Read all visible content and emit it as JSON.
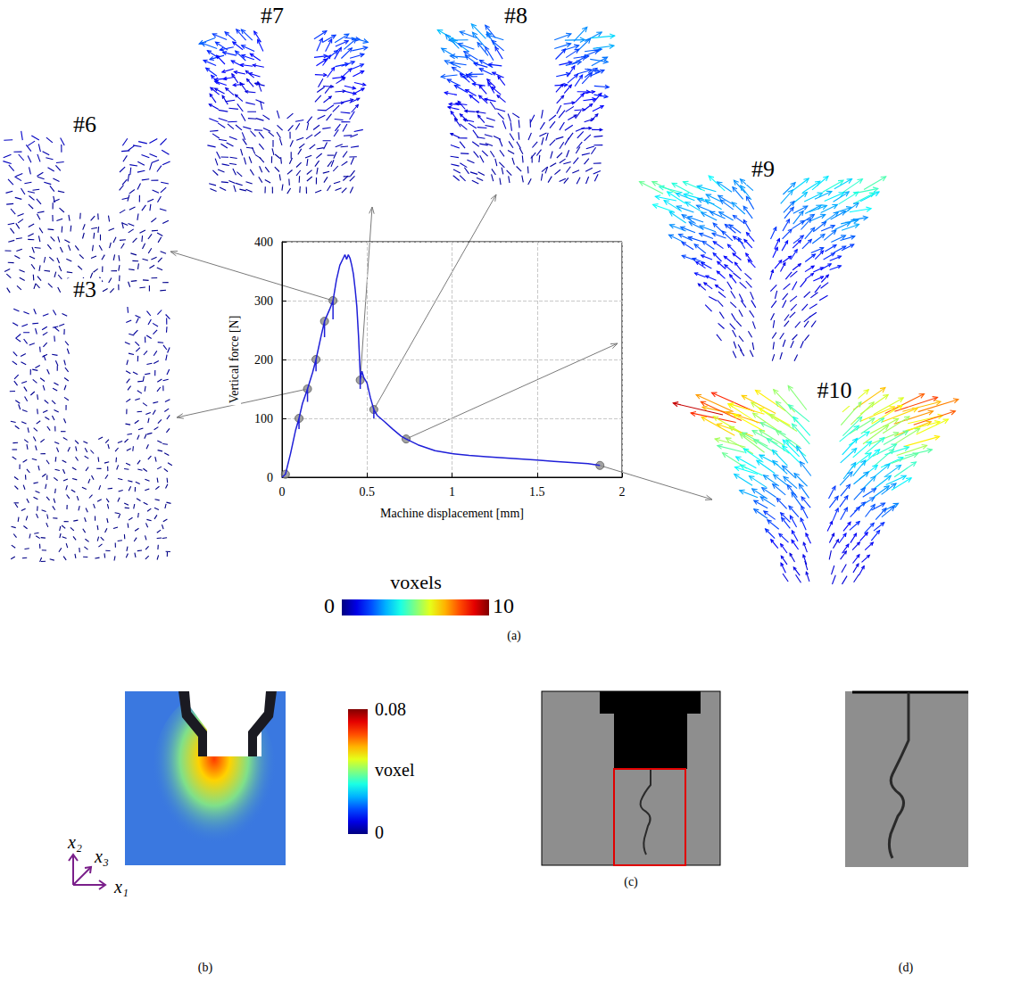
{
  "chart_data": {
    "type": "line",
    "x_label": "Machine displacement [mm]",
    "y_label": "Vertical force [N]",
    "x": [
      0,
      0.02,
      0.05,
      0.08,
      0.1,
      0.1,
      0.1,
      0.12,
      0.15,
      0.15,
      0.15,
      0.18,
      0.2,
      0.2,
      0.2,
      0.23,
      0.25,
      0.25,
      0.25,
      0.28,
      0.3,
      0.3,
      0.3,
      0.32,
      0.34,
      0.36,
      0.37,
      0.38,
      0.39,
      0.4,
      0.41,
      0.42,
      0.43,
      0.44,
      0.45,
      0.46,
      0.46,
      0.46,
      0.47,
      0.48,
      0.49,
      0.5,
      0.52,
      0.54,
      0.54,
      0.54,
      0.56,
      0.6,
      0.65,
      0.7,
      0.73,
      0.8,
      0.9,
      1.0,
      1.1,
      1.2,
      1.3,
      1.4,
      1.5,
      1.6,
      1.7,
      1.8,
      1.87
    ],
    "values": [
      0,
      5,
      40,
      80,
      100,
      82,
      100,
      125,
      150,
      128,
      150,
      178,
      200,
      180,
      200,
      240,
      265,
      238,
      265,
      285,
      300,
      268,
      300,
      335,
      360,
      372,
      378,
      370,
      378,
      372,
      360,
      345,
      320,
      290,
      240,
      175,
      150,
      165,
      180,
      170,
      165,
      160,
      135,
      115,
      100,
      115,
      105,
      95,
      82,
      70,
      65,
      55,
      45,
      40,
      37,
      35,
      33,
      31,
      29,
      27,
      25,
      23,
      20
    ],
    "color": "#1f1fd8",
    "xlim": [
      0,
      2
    ],
    "xticks": [
      0,
      0.5,
      1,
      1.5,
      2
    ],
    "ylim": [
      0,
      400
    ],
    "yticks": [
      0,
      100,
      200,
      300,
      400
    ],
    "grid": true,
    "scans": {
      "x": [
        0.02,
        0.1,
        0.15,
        0.2,
        0.25,
        0.3,
        0.46,
        0.54,
        0.73,
        1.87
      ],
      "values": [
        5,
        100,
        150,
        200,
        265,
        300,
        165,
        115,
        65,
        20
      ],
      "labels": [
        null,
        null,
        "#3",
        null,
        null,
        "#6",
        "#7",
        "#8",
        "#9",
        "#10"
      ],
      "color": "#8c8c8c",
      "marker": "circle"
    }
  },
  "figure": {
    "panel_labels": [
      "(a)",
      "(b)",
      "(c)",
      "(d)"
    ],
    "displacement_colorbar": {
      "title": "voxels",
      "range": [
        0,
        10
      ],
      "ticks": [
        0,
        10
      ]
    },
    "panel_b": {
      "colorbar": {
        "title": "voxel",
        "range": [
          0,
          0.08
        ],
        "ticks": [
          0,
          0.08
        ]
      },
      "axes": [
        "x₁",
        "x₂",
        "x₃"
      ]
    }
  }
}
